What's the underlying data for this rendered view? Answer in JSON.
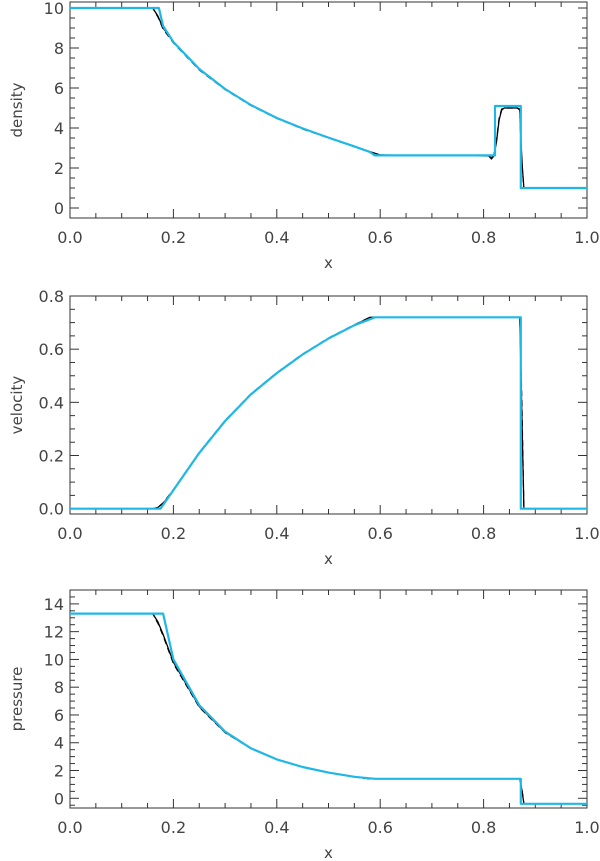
{
  "colors": {
    "exact": "#1fb8e6",
    "numerical": "#000000",
    "axes": "#333333"
  },
  "chart_data": [
    {
      "type": "line",
      "xlabel": "x",
      "ylabel": "density",
      "xlim": [
        0.0,
        1.0
      ],
      "ylim": [
        -0.5,
        10.3
      ],
      "xticks": [
        0.0,
        0.2,
        0.4,
        0.6,
        0.8,
        1.0
      ],
      "xtick_labels": [
        "0.0",
        "0.2",
        "0.4",
        "0.6",
        "0.8",
        "1.0"
      ],
      "yticks": [
        0,
        2,
        4,
        6,
        8,
        10
      ],
      "ytick_labels": [
        "0",
        "2",
        "4",
        "6",
        "8",
        "10"
      ],
      "series": [
        {
          "style": "solid-black",
          "x": [
            0.0,
            0.16,
            0.17,
            0.18,
            0.2,
            0.25,
            0.3,
            0.35,
            0.4,
            0.45,
            0.5,
            0.55,
            0.58,
            0.6,
            0.81,
            0.815,
            0.82,
            0.825,
            0.83,
            0.835,
            0.84,
            0.865,
            0.87,
            0.872,
            0.875,
            0.878,
            1.0
          ],
          "y": [
            10.0,
            10.0,
            9.6,
            9.0,
            8.3,
            6.95,
            5.95,
            5.15,
            4.5,
            3.98,
            3.52,
            3.08,
            2.82,
            2.65,
            2.6,
            2.45,
            2.6,
            3.3,
            4.4,
            4.9,
            5.0,
            5.0,
            4.95,
            3.5,
            2.0,
            1.0,
            1.0
          ]
        },
        {
          "style": "dashed-black",
          "x": [
            0.0,
            0.16,
            0.17,
            0.18,
            0.2,
            0.25,
            0.3,
            0.35,
            0.4,
            0.45,
            0.5,
            0.55,
            0.58,
            0.6,
            0.81,
            0.815,
            0.82,
            0.825,
            0.83,
            0.835,
            0.84,
            0.865,
            0.87,
            0.872,
            0.875,
            0.878,
            1.0
          ],
          "y": [
            10.0,
            10.0,
            9.55,
            8.95,
            8.25,
            6.9,
            5.92,
            5.12,
            4.48,
            3.95,
            3.5,
            3.06,
            2.8,
            2.65,
            2.6,
            2.5,
            2.65,
            3.4,
            4.5,
            4.95,
            5.0,
            5.0,
            4.9,
            3.3,
            1.9,
            1.0,
            1.0
          ]
        },
        {
          "style": "exact-cyan",
          "x": [
            0.0,
            0.172,
            0.18,
            0.2,
            0.25,
            0.3,
            0.35,
            0.4,
            0.45,
            0.5,
            0.55,
            0.58,
            0.59,
            0.822,
            0.822,
            0.872,
            0.872,
            1.0
          ],
          "y": [
            10.0,
            10.0,
            9.1,
            8.3,
            6.95,
            5.95,
            5.15,
            4.5,
            3.98,
            3.52,
            3.08,
            2.8,
            2.63,
            2.63,
            5.1,
            5.1,
            1.0,
            1.0
          ]
        }
      ]
    },
    {
      "type": "line",
      "xlabel": "x",
      "ylabel": "velocity",
      "xlim": [
        0.0,
        1.0
      ],
      "ylim": [
        -0.02,
        0.8
      ],
      "xticks": [
        0.0,
        0.2,
        0.4,
        0.6,
        0.8,
        1.0
      ],
      "xtick_labels": [
        "0.0",
        "0.2",
        "0.4",
        "0.6",
        "0.8",
        "1.0"
      ],
      "yticks": [
        0.0,
        0.2,
        0.4,
        0.6,
        0.8
      ],
      "ytick_labels": [
        "0.0",
        "0.2",
        "0.4",
        "0.6",
        "0.8"
      ],
      "series": [
        {
          "style": "solid-black",
          "x": [
            0.0,
            0.16,
            0.17,
            0.18,
            0.2,
            0.25,
            0.3,
            0.35,
            0.4,
            0.45,
            0.5,
            0.55,
            0.58,
            0.6,
            0.87,
            0.874,
            0.878,
            1.0
          ],
          "y": [
            0.0,
            0.0,
            0.005,
            0.02,
            0.07,
            0.21,
            0.33,
            0.43,
            0.51,
            0.58,
            0.64,
            0.69,
            0.72,
            0.72,
            0.72,
            0.35,
            0.0,
            0.0
          ]
        },
        {
          "style": "dashed-black",
          "x": [
            0.0,
            0.16,
            0.17,
            0.18,
            0.2,
            0.25,
            0.3,
            0.35,
            0.4,
            0.45,
            0.5,
            0.55,
            0.58,
            0.6,
            0.87,
            0.874,
            0.878,
            1.0
          ],
          "y": [
            0.0,
            0.0,
            0.005,
            0.022,
            0.072,
            0.212,
            0.332,
            0.432,
            0.512,
            0.582,
            0.642,
            0.692,
            0.72,
            0.72,
            0.72,
            0.4,
            0.0,
            0.0
          ]
        },
        {
          "style": "exact-cyan",
          "x": [
            0.0,
            0.175,
            0.2,
            0.25,
            0.3,
            0.35,
            0.4,
            0.45,
            0.5,
            0.55,
            0.59,
            0.872,
            0.872,
            1.0
          ],
          "y": [
            0.0,
            0.0,
            0.07,
            0.21,
            0.33,
            0.43,
            0.51,
            0.58,
            0.64,
            0.69,
            0.72,
            0.72,
            0.0,
            0.0
          ]
        }
      ]
    },
    {
      "type": "line",
      "xlabel": "x",
      "ylabel": "pressure",
      "xlim": [
        0.0,
        1.0
      ],
      "ylim": [
        -0.7,
        15.0
      ],
      "xticks": [
        0.0,
        0.2,
        0.4,
        0.6,
        0.8,
        1.0
      ],
      "xtick_labels": [
        "0.0",
        "0.2",
        "0.4",
        "0.6",
        "0.8",
        "1.0"
      ],
      "yticks": [
        0,
        2,
        4,
        6,
        8,
        10,
        12,
        14
      ],
      "ytick_labels": [
        "0",
        "2",
        "4",
        "6",
        "8",
        "10",
        "12",
        "14"
      ],
      "series": [
        {
          "style": "solid-black",
          "x": [
            0.0,
            0.16,
            0.17,
            0.18,
            0.2,
            0.25,
            0.3,
            0.35,
            0.4,
            0.45,
            0.5,
            0.55,
            0.58,
            0.6,
            0.87,
            0.874,
            0.878,
            1.0
          ],
          "y": [
            13.3,
            13.3,
            12.7,
            11.8,
            9.8,
            6.6,
            4.75,
            3.6,
            2.8,
            2.25,
            1.85,
            1.55,
            1.4,
            1.4,
            1.4,
            0.6,
            -0.4,
            -0.4
          ]
        },
        {
          "style": "dashed-black",
          "x": [
            0.0,
            0.16,
            0.17,
            0.18,
            0.2,
            0.25,
            0.3,
            0.35,
            0.4,
            0.45,
            0.5,
            0.55,
            0.58,
            0.6,
            0.87,
            0.874,
            0.878,
            1.0
          ],
          "y": [
            13.3,
            13.3,
            12.6,
            11.7,
            9.7,
            6.55,
            4.72,
            3.58,
            2.79,
            2.24,
            1.84,
            1.54,
            1.4,
            1.4,
            1.4,
            0.7,
            -0.4,
            -0.4
          ]
        },
        {
          "style": "exact-cyan",
          "x": [
            0.0,
            0.18,
            0.2,
            0.25,
            0.3,
            0.35,
            0.4,
            0.45,
            0.5,
            0.55,
            0.59,
            0.872,
            0.872,
            1.0
          ],
          "y": [
            13.3,
            13.3,
            10.0,
            6.7,
            4.8,
            3.6,
            2.8,
            2.25,
            1.85,
            1.55,
            1.4,
            1.4,
            -0.4,
            -0.4
          ]
        }
      ]
    }
  ]
}
